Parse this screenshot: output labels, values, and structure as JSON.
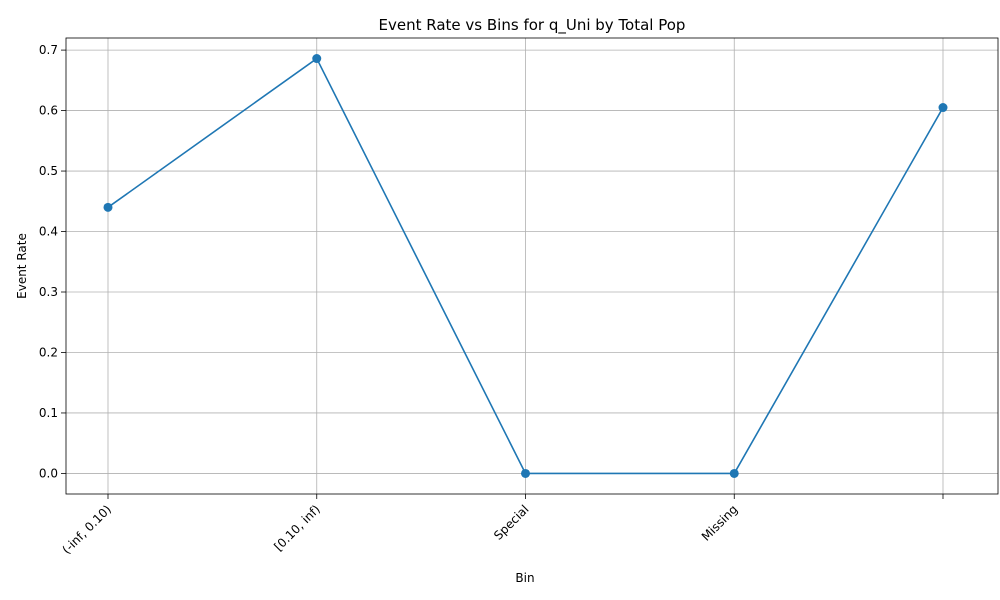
{
  "chart_data": {
    "type": "line",
    "title": "Event Rate vs Bins for q_Uni by Total Pop",
    "xlabel": "Bin",
    "ylabel": "Event Rate",
    "categories": [
      "(-inf, 0.10)",
      "[0.10, inf)",
      "Special",
      "Missing",
      ""
    ],
    "series": [
      {
        "values": [
          0.44,
          0.686,
          0.0,
          0.0,
          0.605
        ],
        "color": "#1f77b4"
      }
    ],
    "ylim": [
      -0.034,
      0.72
    ],
    "yticks": [
      0.0,
      0.1,
      0.2,
      0.3,
      0.4,
      0.5,
      0.6,
      0.7
    ],
    "ytick_labels": [
      "0.0",
      "0.1",
      "0.2",
      "0.3",
      "0.4",
      "0.5",
      "0.6",
      "0.7"
    ],
    "grid": true,
    "marker": "circle"
  }
}
